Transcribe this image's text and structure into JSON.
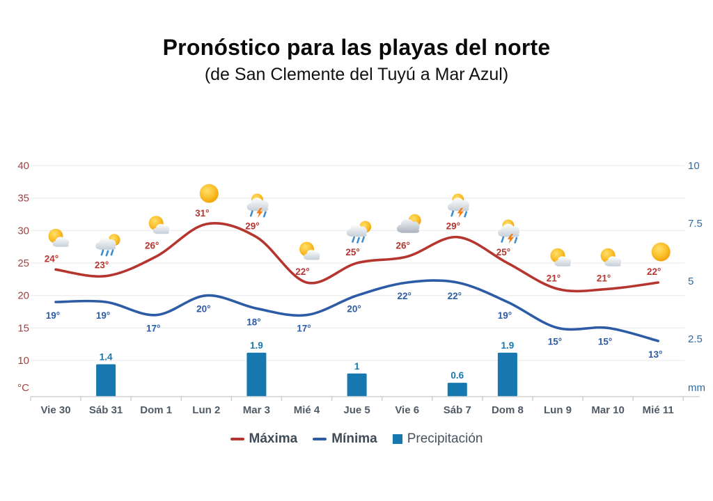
{
  "title": "Pronóstico para las playas del norte",
  "subtitle": "(de San Clemente del Tuyú a Mar Azul)",
  "legend": {
    "maxima": "Máxima",
    "minima": "Mínima",
    "precipitacion": "Precipitación"
  },
  "colors": {
    "max_line": "#b5352f",
    "max_label": "#b5352f",
    "temp_axis": "#a04341",
    "min_line": "#2d5ba6",
    "min_label": "#2d5ba6",
    "bar": "#1678ae",
    "bar_label": "#1878ad",
    "precip_axis": "#336a9e",
    "x_label": "#4f5a64",
    "grid": "#e8e8e8",
    "axis_line": "#d4d4d4",
    "tick": "#c9c9c9",
    "legend_text": "#3e4a55"
  },
  "chart_data": {
    "type": "combo-line-bar",
    "categories": [
      "Vie 30",
      "Sáb 31",
      "Dom 1",
      "Lun 2",
      "Mar 3",
      "Mié 4",
      "Jue 5",
      "Vie 6",
      "Sáb 7",
      "Dom 8",
      "Lun 9",
      "Mar 10",
      "Mié 11"
    ],
    "series": [
      {
        "name": "Máxima",
        "type": "line",
        "axis": "temp",
        "unit": "°",
        "values": [
          24,
          23,
          26,
          31,
          29,
          22,
          25,
          26,
          29,
          25,
          21,
          21,
          22
        ]
      },
      {
        "name": "Mínima",
        "type": "line",
        "axis": "temp",
        "unit": "°",
        "values": [
          19,
          19,
          17,
          20,
          18,
          17,
          20,
          22,
          22,
          19,
          15,
          15,
          13
        ]
      },
      {
        "name": "Precipitación",
        "type": "bar",
        "axis": "precip",
        "unit": "",
        "values": [
          null,
          1.4,
          null,
          null,
          1.9,
          null,
          1,
          null,
          0.6,
          1.9,
          null,
          null,
          null
        ]
      }
    ],
    "icons": [
      "sun-cloud",
      "rain-sun",
      "sun-cloud",
      "sun",
      "storm",
      "sun-cloud",
      "rain-sun",
      "cloud-sun",
      "storm",
      "storm",
      "sun-cloud",
      "sun-cloud",
      "sun"
    ],
    "temp_axis": {
      "ticks": [
        40,
        35,
        30,
        25,
        20,
        15,
        10
      ],
      "unit": "°C"
    },
    "precip_axis": {
      "ticks": [
        10,
        7.5,
        5,
        2.5
      ],
      "unit": "mm"
    },
    "grid": true,
    "legend_position": "bottom"
  }
}
